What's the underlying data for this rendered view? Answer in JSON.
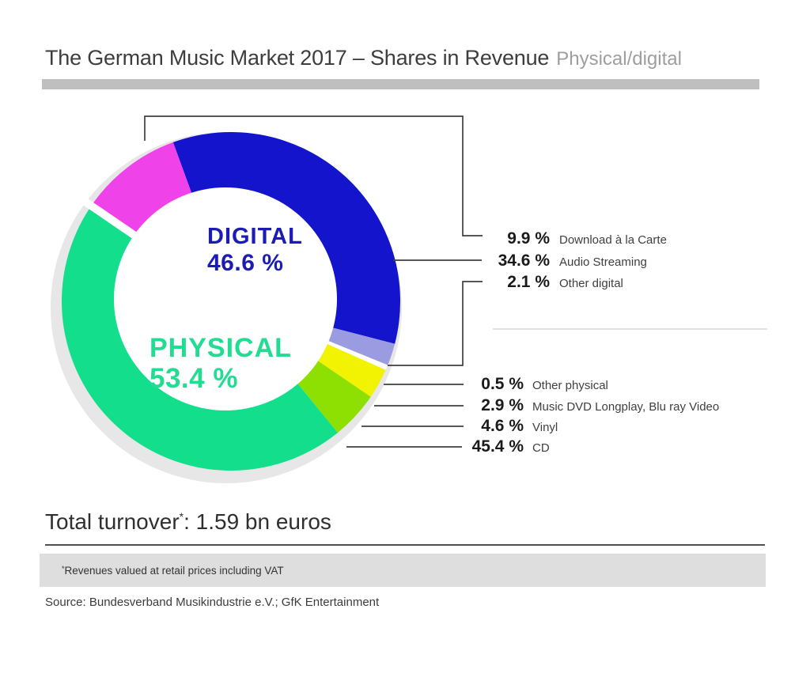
{
  "title": {
    "main": "The German Music Market 2017 – Shares in Revenue",
    "sub": "Physical/digital"
  },
  "chart_data": {
    "type": "pie",
    "donut": true,
    "title": "The German Music Market 2017 – Shares in Revenue (Physical/digital)",
    "total_turnover": "1.59 bn euros",
    "start_angle_deg": -20,
    "legend_position": "right",
    "groups": [
      {
        "id": "digital",
        "name": "DIGITAL",
        "pct_display": "46.6 %",
        "value": 46.6,
        "color": "#1c1cb4"
      },
      {
        "id": "physical",
        "name": "PHYSICAL",
        "pct_display": "53.4 %",
        "value": 53.4,
        "color": "#22dc92"
      }
    ],
    "segments": [
      {
        "id": "audio-streaming",
        "label": "Audio Streaming",
        "value": 34.6,
        "color": "#1414cd",
        "group": "digital"
      },
      {
        "id": "other-digital",
        "label": "Other digital",
        "value": 2.1,
        "color": "#9b9be2",
        "group": "digital"
      },
      {
        "id": "other-physical",
        "label": "Other physical",
        "value": 0.5,
        "color": "#ffffff",
        "group": "physical"
      },
      {
        "id": "music-dvd",
        "label": "Music DVD Longplay, Blu ray Video",
        "value": 2.9,
        "color": "#f2f203",
        "group": "physical"
      },
      {
        "id": "vinyl",
        "label": "Vinyl",
        "value": 4.6,
        "color": "#8ee003",
        "group": "physical"
      },
      {
        "id": "cd",
        "label": "CD",
        "value": 45.4,
        "color": "#12de8c",
        "group": "physical"
      },
      {
        "id": "download-a-la-carte",
        "label": "Download à la Carte",
        "value": 9.9,
        "color": "#ef42e9",
        "group": "digital"
      }
    ],
    "shadow_ring_color": "#e7e7e7"
  },
  "callouts": {
    "digital": [
      {
        "pct": "9.9 %",
        "label": "Download à la Carte"
      },
      {
        "pct": "34.6 %",
        "label": "Audio Streaming"
      },
      {
        "pct": "2.1 %",
        "label": "Other digital"
      }
    ],
    "physical": [
      {
        "pct": "0.5 %",
        "label": "Other physical"
      },
      {
        "pct": "2.9 %",
        "label": "Music DVD Longplay, Blu ray Video"
      },
      {
        "pct": "4.6 %",
        "label": "Vinyl"
      },
      {
        "pct": "45.4 %",
        "label": "CD"
      }
    ]
  },
  "total": {
    "label": "Total turnover",
    "star": "*",
    "value": ": 1.59 bn euros"
  },
  "footnote": {
    "star": "*",
    "text": "Revenues valued at retail prices including VAT"
  },
  "source": "Source: Bundesverband Musikindustrie e.V.; GfK Entertainment"
}
